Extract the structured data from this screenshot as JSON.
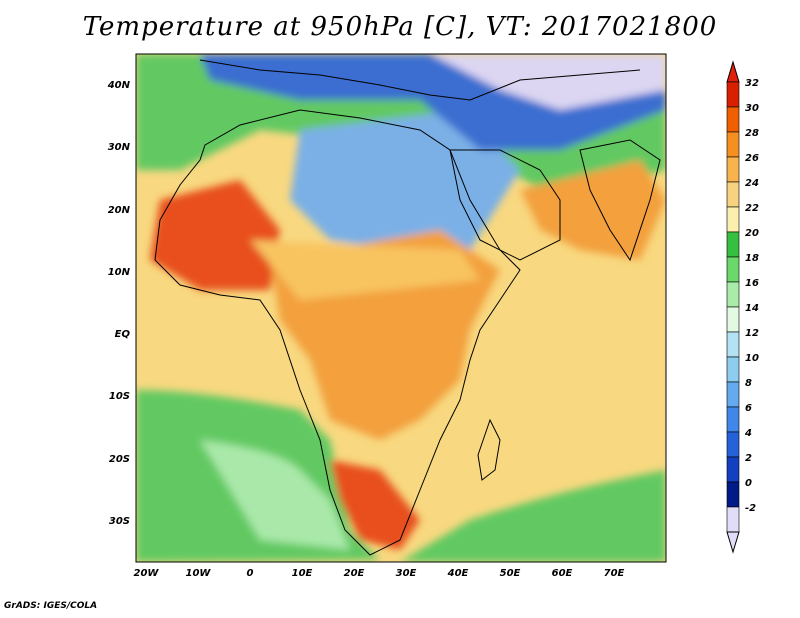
{
  "title": "Temperature at 950hPa [C], VT: 2017021800",
  "credit": "GrADS: IGES/COLA",
  "lat_ticks": [
    "40N",
    "30N",
    "20N",
    "10N",
    "EQ",
    "10S",
    "20S",
    "30S"
  ],
  "lon_ticks": [
    "20W",
    "10W",
    "0",
    "10E",
    "20E",
    "30E",
    "40E",
    "50E",
    "60E",
    "70E"
  ],
  "colorbar": {
    "labels": [
      "32",
      "30",
      "28",
      "26",
      "24",
      "22",
      "20",
      "18",
      "16",
      "14",
      "12",
      "10",
      "8",
      "6",
      "4",
      "2",
      "0",
      "-2"
    ],
    "colors": [
      "#a00000",
      "#d82000",
      "#f06000",
      "#f59020",
      "#f8b34d",
      "#f7d27f",
      "#faefac",
      "#37c040",
      "#6ad86a",
      "#a9eca9",
      "#e2fae2",
      "#b4e2f5",
      "#8ccdf0",
      "#63aaee",
      "#3f88ea",
      "#2561d8",
      "#1240c0",
      "#001a86",
      "#e1dcf7"
    ],
    "top_color": "#e02008",
    "bottom_color": "#e1dcf7"
  },
  "map_palette": {
    "ocean_warm": "#f8d880",
    "ocean_cool": "#62c962",
    "ocean_pale": "#a9e8a9",
    "land_hot": "#e8501c",
    "land_warm": "#f3a03c",
    "land_mild": "#f8c461",
    "cold": "#7ab0e6",
    "very_cold": "#3a6ed0",
    "snow": "#dcd6f2"
  }
}
